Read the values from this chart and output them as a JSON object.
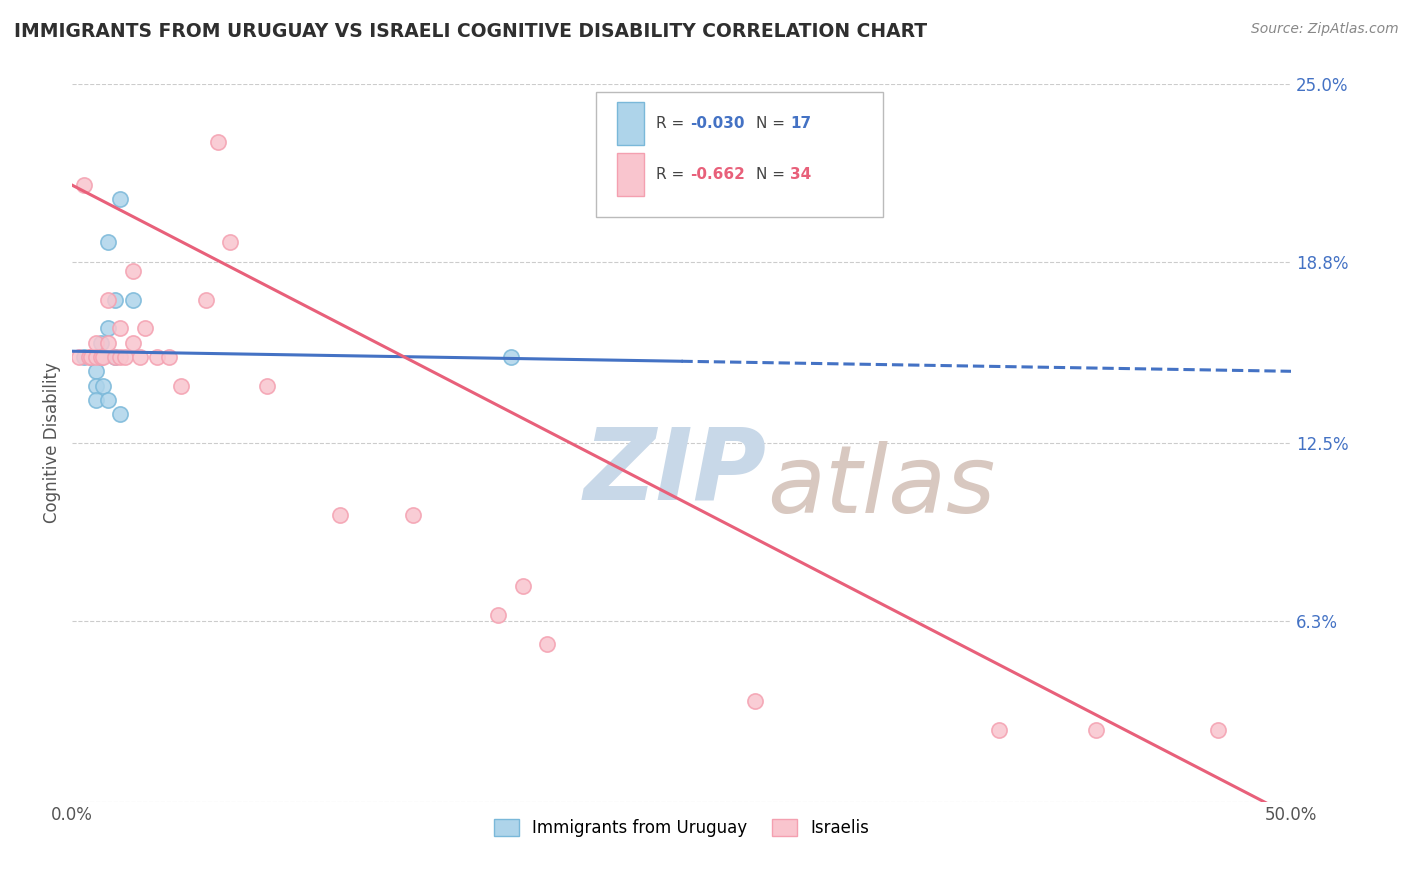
{
  "title": "IMMIGRANTS FROM URUGUAY VS ISRAELI COGNITIVE DISABILITY CORRELATION CHART",
  "source": "Source: ZipAtlas.com",
  "xlabel": "",
  "ylabel": "Cognitive Disability",
  "xmin": 0.0,
  "xmax": 0.5,
  "ymin": 0.0,
  "ymax": 0.25,
  "yticks": [
    0.0,
    0.063,
    0.125,
    0.188,
    0.25
  ],
  "ytick_labels": [
    "",
    "6.3%",
    "12.5%",
    "18.8%",
    "25.0%"
  ],
  "legend_r1": "-0.030",
  "legend_n1": "17",
  "legend_r2": "-0.662",
  "legend_n2": "34",
  "blue_scatter_x": [
    0.005,
    0.008,
    0.01,
    0.01,
    0.01,
    0.012,
    0.012,
    0.013,
    0.015,
    0.015,
    0.015,
    0.018,
    0.018,
    0.02,
    0.02,
    0.025,
    0.18
  ],
  "blue_scatter_y": [
    0.155,
    0.155,
    0.15,
    0.145,
    0.14,
    0.16,
    0.155,
    0.145,
    0.195,
    0.165,
    0.14,
    0.175,
    0.155,
    0.21,
    0.135,
    0.175,
    0.155
  ],
  "pink_scatter_x": [
    0.003,
    0.005,
    0.007,
    0.008,
    0.01,
    0.01,
    0.012,
    0.013,
    0.015,
    0.015,
    0.018,
    0.02,
    0.02,
    0.022,
    0.025,
    0.025,
    0.028,
    0.03,
    0.035,
    0.04,
    0.045,
    0.055,
    0.06,
    0.065,
    0.08,
    0.11,
    0.14,
    0.175,
    0.185,
    0.195,
    0.28,
    0.38,
    0.42,
    0.47
  ],
  "pink_scatter_y": [
    0.155,
    0.215,
    0.155,
    0.155,
    0.16,
    0.155,
    0.155,
    0.155,
    0.175,
    0.16,
    0.155,
    0.165,
    0.155,
    0.155,
    0.185,
    0.16,
    0.155,
    0.165,
    0.155,
    0.155,
    0.145,
    0.175,
    0.23,
    0.195,
    0.145,
    0.1,
    0.1,
    0.065,
    0.075,
    0.055,
    0.035,
    0.025,
    0.025,
    0.025
  ],
  "blue_line_x": [
    0.0,
    0.5
  ],
  "blue_line_y_start": 0.157,
  "blue_line_y_end": 0.15,
  "pink_line_x": [
    0.0,
    0.5
  ],
  "pink_line_y_start": 0.215,
  "pink_line_y_end": -0.005,
  "blue_color": "#7ab8d9",
  "pink_color": "#f4a0b0",
  "blue_fill_color": "#aed4ea",
  "pink_fill_color": "#f9c5ce",
  "blue_line_color": "#4472c4",
  "pink_line_color": "#e8607a",
  "bg_color": "#ffffff",
  "grid_color": "#cccccc",
  "title_color": "#2f2f2f",
  "watermark_zip": "ZIP",
  "watermark_atlas": "atlas",
  "watermark_color_zip": "#c8d8e8",
  "watermark_color_atlas": "#d8c8c0"
}
